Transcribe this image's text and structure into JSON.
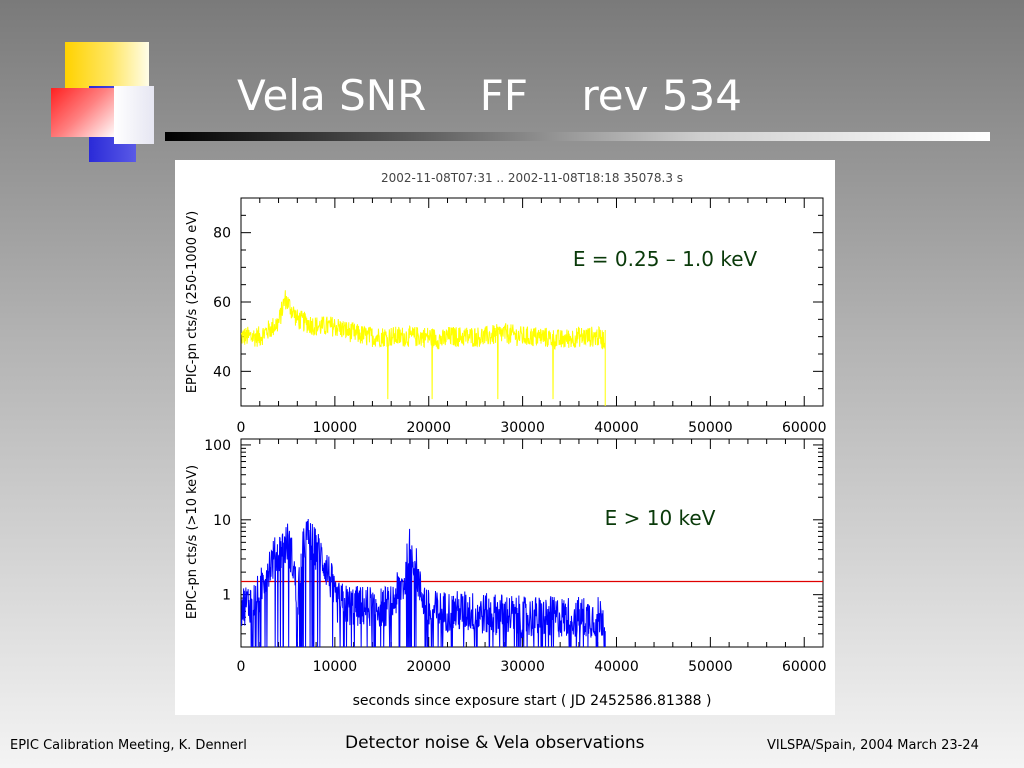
{
  "slide": {
    "title": "Vela SNR    FF    rev 534",
    "footer_left": "EPIC Calibration Meeting, K. Dennerl",
    "footer_center": "Detector noise & Vela observations",
    "footer_right": "VILSPA/Spain, 2004 March 23-24"
  },
  "colors": {
    "soft_band": "#ffff00",
    "hard_band": "#0000ff",
    "threshold": "#e00000",
    "annotation": "#0a3a0a"
  },
  "chart_data": [
    {
      "type": "line",
      "header": "2002-11-08T07:31 .. 2002-11-08T18:18     35078.3 s",
      "annotation": "E = 0.25 – 1.0 keV",
      "ylabel": "EPIC-pn cts/s   (250-1000 eV)",
      "xlabel": "",
      "xlim": [
        0,
        62000
      ],
      "ylim": [
        30,
        90
      ],
      "x_ticks": [
        "0",
        "10000",
        "20000",
        "30000",
        "40000",
        "50000",
        "60000"
      ],
      "y_ticks": [
        "40",
        "60",
        "80"
      ],
      "series": [
        {
          "color": "#ffff00",
          "x": [
            0,
            2000,
            4000,
            4700,
            6000,
            8000,
            10000,
            12000,
            13500,
            14000,
            16000,
            18000,
            20000,
            21500,
            22000,
            24000,
            26000,
            28000,
            30000,
            32000,
            34000,
            36000,
            38000,
            38800
          ],
          "y": [
            50,
            50,
            54,
            61,
            55,
            53,
            53,
            51,
            50,
            50,
            50,
            50,
            50,
            49,
            50,
            50,
            50,
            51,
            50,
            50,
            49,
            50,
            50,
            49
          ]
        }
      ]
    },
    {
      "type": "line",
      "annotation": "E > 10 keV",
      "ylabel": "EPIC-pn cts/s   (>10 keV)",
      "xlabel": "seconds since exposure start  ( JD 2452586.81388 )",
      "xlim": [
        0,
        62000
      ],
      "ylim": [
        0.2,
        120
      ],
      "yscale": "log",
      "x_ticks": [
        "0",
        "10000",
        "20000",
        "30000",
        "40000",
        "50000",
        "60000"
      ],
      "y_ticks": [
        "1",
        "10",
        "100"
      ],
      "threshold": 1.5,
      "series": [
        {
          "color": "#0000ff",
          "x": [
            0,
            1000,
            2000,
            3000,
            4000,
            5000,
            6000,
            7000,
            8000,
            9000,
            10000,
            12000,
            14000,
            16000,
            17500,
            18000,
            19000,
            20000,
            22000,
            24000,
            26000,
            28000,
            30000,
            32000,
            34000,
            36000,
            38000,
            38800
          ],
          "y": [
            0.7,
            0.8,
            1.0,
            2.5,
            3.5,
            5.0,
            0.5,
            6.0,
            4.0,
            2.5,
            0.8,
            0.7,
            0.7,
            0.7,
            1.5,
            4.5,
            1.2,
            0.6,
            0.6,
            0.6,
            0.55,
            0.55,
            0.5,
            0.5,
            0.5,
            0.5,
            0.5,
            0.5
          ]
        }
      ]
    }
  ]
}
